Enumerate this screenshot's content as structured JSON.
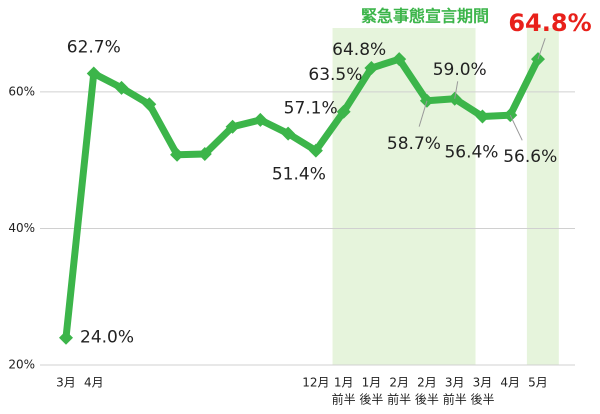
{
  "chart_data": {
    "type": "line",
    "annotation": "緊急事態宣言期間",
    "categories": [
      "3月",
      "4月",
      null,
      null,
      null,
      null,
      null,
      null,
      null,
      "12月",
      "1月",
      "1月",
      "2月",
      "2月",
      "3月",
      "3月",
      "4月",
      "5月"
    ],
    "sub_categories": [
      null,
      null,
      null,
      null,
      null,
      null,
      null,
      null,
      null,
      null,
      "前半",
      "後半",
      "前半",
      "後半",
      "前半",
      "後半",
      null,
      null
    ],
    "series": [
      {
        "name": "rate",
        "color": "#3cb54a",
        "values": [
          24.0,
          62.7,
          60.6,
          58.2,
          50.8,
          50.9,
          54.9,
          55.9,
          53.9,
          51.4,
          57.1,
          63.5,
          64.8,
          58.7,
          59.0,
          56.4,
          56.6,
          64.8
        ],
        "value_labels": [
          "24.0%",
          "62.7%",
          null,
          null,
          null,
          null,
          null,
          null,
          null,
          "51.4%",
          "57.1%",
          "63.5%",
          "64.8%",
          "58.7%",
          "59.0%",
          "56.4%",
          "56.6%",
          "64.8%"
        ]
      }
    ],
    "emergency_periods": [
      [
        10,
        14
      ],
      [
        17,
        17
      ]
    ],
    "shade_color": "#e6f4dc",
    "ylim": [
      20,
      72
    ],
    "yticks": [
      {
        "value": 20,
        "label": "20%"
      },
      {
        "value": 40,
        "label": "40%"
      },
      {
        "value": 60,
        "label": "60%"
      }
    ],
    "grid": true
  }
}
